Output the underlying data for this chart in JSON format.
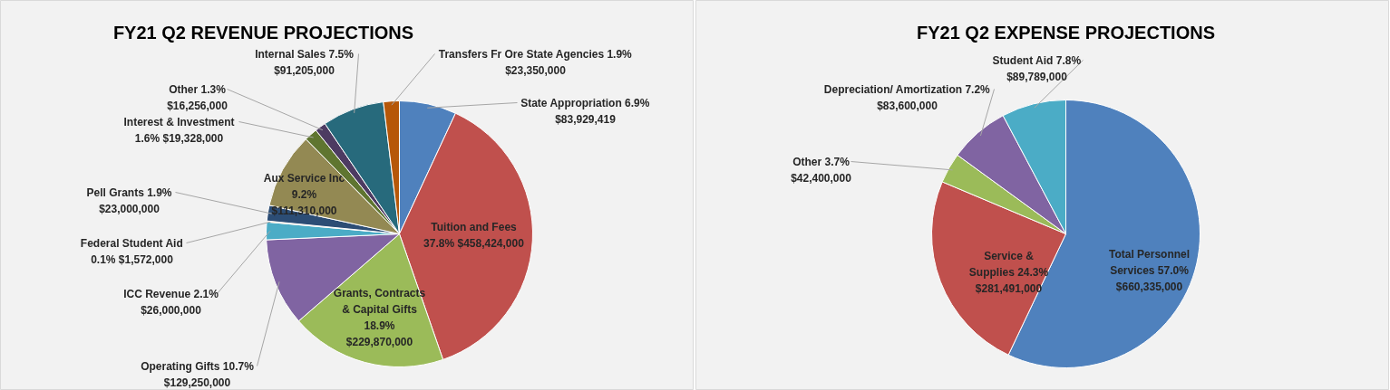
{
  "chart_data": [
    {
      "type": "pie",
      "title": "FY21 Q2 REVENUE PROJECTIONS",
      "categories": [
        "State Appropriation",
        "Tuition and Fees",
        "Grants, Contracts & Capital Gifts",
        "Operating Gifts",
        "ICC Revenue",
        "Federal Student Aid",
        "Pell Grants",
        "Aux Service Inc",
        "Interest & Investment",
        "Other",
        "Internal Sales",
        "Transfers Fr Ore State Agencies"
      ],
      "values": [
        83929419,
        458424000,
        229870000,
        129250000,
        26000000,
        1572000,
        23000000,
        111310000,
        19328000,
        16256000,
        91205000,
        23350000
      ],
      "colors": [
        "#4f81bd",
        "#c0504d",
        "#9bbb59",
        "#8064a2",
        "#4bacc6",
        "#f79646",
        "#2c4d75",
        "#938953",
        "#5f7530",
        "#4d3b62",
        "#276a7c",
        "#b65708"
      ],
      "value_labels": [
        "6.9% $83,929,419",
        "37.8% $458,424,000",
        "18.9% $229,870,000",
        "10.7% $129,250,000",
        "2.1% $26,000,000",
        "0.1% $1,572,000",
        "1.9% $23,000,000",
        "9.2% $111,310,000",
        "1.6% $19,328,000",
        "1.3% $16,256,000",
        "7.5% $91,205,000",
        "1.9% $23,350,000"
      ]
    },
    {
      "type": "pie",
      "title": "FY21 Q2 EXPENSE PROJECTIONS",
      "categories": [
        "Total Personnel Services",
        "Service & Supplies",
        "Other",
        "Depreciation/ Amortization",
        "Student Aid"
      ],
      "values": [
        660335000,
        281491000,
        42400000,
        83600000,
        89789000
      ],
      "colors": [
        "#4f81bd",
        "#c0504d",
        "#9bbb59",
        "#8064a2",
        "#4bacc6"
      ],
      "value_labels": [
        "57.0% $660,335,000",
        "24.3% $281,491,000",
        "3.7% $42,400,000",
        "7.2% $83,600,000",
        "7.8% $89,789,000"
      ]
    }
  ]
}
